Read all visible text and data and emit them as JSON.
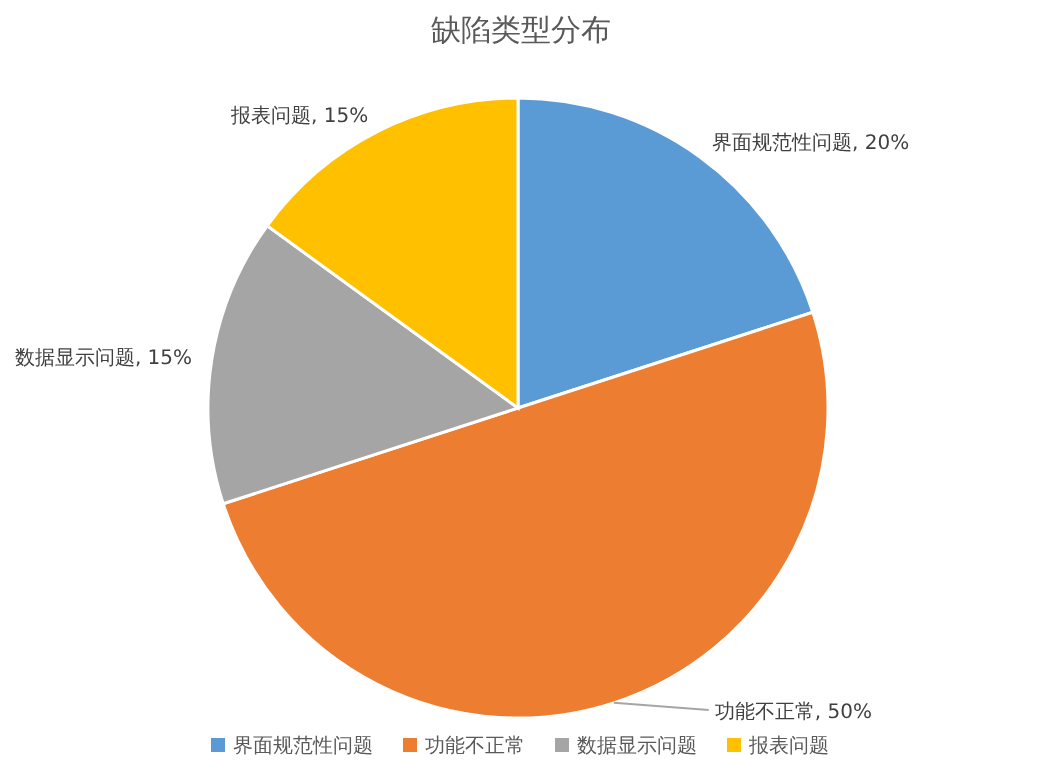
{
  "chart_data": {
    "type": "pie",
    "title": "缺陷类型分布",
    "categories": [
      "界面规范性问题",
      "功能不正常",
      "数据显示问题",
      "报表问题"
    ],
    "values": [
      20,
      50,
      15,
      15
    ],
    "colors": [
      "#5b9bd5",
      "#ed7d31",
      "#a5a5a5",
      "#ffc000"
    ],
    "value_labels": [
      "界面规范性问题, 20%",
      "功能不正常, 50%",
      "数据显示问题, 15%",
      "报表问题, 15%"
    ],
    "legend": "bottom"
  }
}
